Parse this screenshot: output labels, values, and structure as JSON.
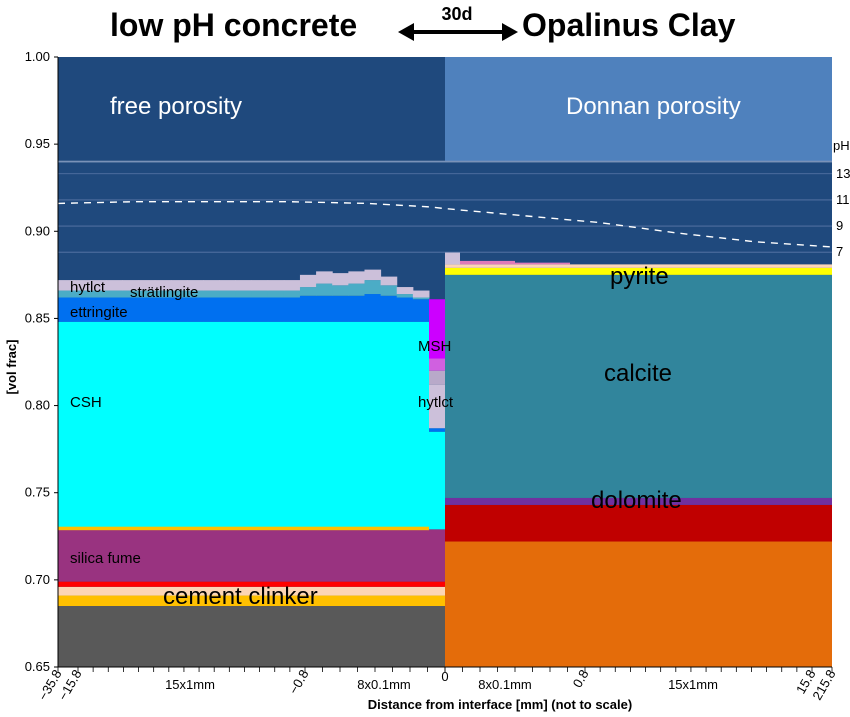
{
  "header": {
    "left_title": "low pH concrete",
    "arrow_label": "30d",
    "right_title": "Opalinus Clay"
  },
  "chart_data": {
    "type": "area",
    "ylabel": "[vol frac]",
    "xlabel": "Distance from interface [mm] (not to scale)",
    "ylim": [
      0.65,
      1.0
    ],
    "yticks": [
      "0.65",
      "0.70",
      "0.75",
      "0.80",
      "0.85",
      "0.90",
      "0.95",
      "1.00"
    ],
    "xticks": [
      "−35.8",
      "−15.8",
      "−0.8",
      "0",
      "0.8",
      "15.8",
      "215.8"
    ],
    "x_segment_labels": [
      "15x1mm",
      "8x0.1mm",
      "8x0.1mm",
      "15x1mm"
    ],
    "colors": {
      "free_porosity": "#1f497d",
      "donnan_porosity": "#4f81bd",
      "hytlct": "#ccc0da",
      "stratlingite": "#4bacc6",
      "ettringite": "#0070f0",
      "csh": "#00ffff",
      "msh": "#cc00ff",
      "silica_fume": "#993380",
      "cement_clinker": "#ffc000",
      "cement_band": "#fcd5b5",
      "cement_red": "#ff0000",
      "cement_base": "#595959",
      "pyrite": "#ffff00",
      "calcite": "#31859c",
      "dolomite": "#c00000",
      "dolomite_edge": "#7030a0",
      "clay_base": "#e46c0a",
      "ph_line": "#ffffff"
    },
    "regions": {
      "left": "free porosity",
      "right": "Donnan porosity",
      "donnan_lower_bound": 0.94
    },
    "concrete_layers": [
      {
        "name": "cement clinker",
        "bottom": 0.65,
        "top": 0.685,
        "color_key": "cement_base"
      },
      {
        "name": "",
        "bottom": 0.685,
        "top": 0.691,
        "color_key": "cement_clinker"
      },
      {
        "name": "",
        "bottom": 0.691,
        "top": 0.696,
        "color_key": "cement_band"
      },
      {
        "name": "",
        "bottom": 0.696,
        "top": 0.699,
        "color_key": "cement_red"
      },
      {
        "name": "silica fume",
        "bottom": 0.699,
        "top": 0.729,
        "color_key": "silica_fume"
      },
      {
        "name": "CSH",
        "bottom": 0.729,
        "top": 0.848,
        "color_key": "csh"
      }
    ],
    "concrete_profile": {
      "columns": [
        {
          "csh": 0.848,
          "ettringite": 0.862,
          "stratlingite": 0.866,
          "hytlct": 0.872
        },
        {
          "csh": 0.848,
          "ettringite": 0.862,
          "stratlingite": 0.866,
          "hytlct": 0.872
        },
        {
          "csh": 0.848,
          "ettringite": 0.862,
          "stratlingite": 0.866,
          "hytlct": 0.872
        },
        {
          "csh": 0.848,
          "ettringite": 0.862,
          "stratlingite": 0.866,
          "hytlct": 0.872
        },
        {
          "csh": 0.848,
          "ettringite": 0.862,
          "stratlingite": 0.866,
          "hytlct": 0.872
        },
        {
          "csh": 0.848,
          "ettringite": 0.862,
          "stratlingite": 0.866,
          "hytlct": 0.872
        },
        {
          "csh": 0.848,
          "ettringite": 0.862,
          "stratlingite": 0.866,
          "hytlct": 0.872
        },
        {
          "csh": 0.848,
          "ettringite": 0.862,
          "stratlingite": 0.866,
          "hytlct": 0.872
        },
        {
          "csh": 0.848,
          "ettringite": 0.862,
          "stratlingite": 0.866,
          "hytlct": 0.872
        },
        {
          "csh": 0.848,
          "ettringite": 0.862,
          "stratlingite": 0.866,
          "hytlct": 0.872
        },
        {
          "csh": 0.848,
          "ettringite": 0.862,
          "stratlingite": 0.866,
          "hytlct": 0.872
        },
        {
          "csh": 0.848,
          "ettringite": 0.862,
          "stratlingite": 0.866,
          "hytlct": 0.872
        },
        {
          "csh": 0.848,
          "ettringite": 0.862,
          "stratlingite": 0.866,
          "hytlct": 0.872
        },
        {
          "csh": 0.848,
          "ettringite": 0.862,
          "stratlingite": 0.866,
          "hytlct": 0.872
        },
        {
          "csh": 0.848,
          "ettringite": 0.862,
          "stratlingite": 0.866,
          "hytlct": 0.872
        },
        {
          "csh": 0.848,
          "ettringite": 0.863,
          "stratlingite": 0.868,
          "hytlct": 0.875
        },
        {
          "csh": 0.848,
          "ettringite": 0.863,
          "stratlingite": 0.87,
          "hytlct": 0.877
        },
        {
          "csh": 0.848,
          "ettringite": 0.863,
          "stratlingite": 0.869,
          "hytlct": 0.876
        },
        {
          "csh": 0.848,
          "ettringite": 0.863,
          "stratlingite": 0.87,
          "hytlct": 0.877
        },
        {
          "csh": 0.848,
          "ettringite": 0.864,
          "stratlingite": 0.872,
          "hytlct": 0.878
        },
        {
          "csh": 0.848,
          "ettringite": 0.863,
          "stratlingite": 0.869,
          "hytlct": 0.874
        },
        {
          "csh": 0.848,
          "ettringite": 0.862,
          "stratlingite": 0.864,
          "hytlct": 0.868
        },
        {
          "csh": 0.848,
          "ettringite": 0.861,
          "stratlingite": 0.862,
          "hytlct": 0.866
        }
      ],
      "interface_column": {
        "csh": 0.785,
        "ettringite": 0.787,
        "hytlct": 0.812,
        "grey": 0.82,
        "msh_light": 0.827,
        "msh": 0.861
      }
    },
    "concrete_labels": [
      "hytlct",
      "strätlingite",
      "ettringite",
      "CSH",
      "MSH",
      "hytlct",
      "silica fume",
      "cement clinker"
    ],
    "clay_layers": [
      {
        "name": "",
        "bottom": 0.65,
        "top": 0.722,
        "color_key": "clay_base"
      },
      {
        "name": "dolomite",
        "bottom": 0.722,
        "top": 0.743,
        "color_key": "dolomite"
      },
      {
        "name": "",
        "bottom": 0.743,
        "top": 0.747,
        "color_key": "dolomite_edge"
      },
      {
        "name": "calcite",
        "bottom": 0.747,
        "top": 0.875,
        "color_key": "calcite"
      },
      {
        "name": "pyrite",
        "bottom": 0.875,
        "top": 0.879,
        "color_key": "pyrite"
      },
      {
        "name": "",
        "bottom": 0.879,
        "top": 0.881,
        "color_key": "cement_band"
      }
    ],
    "ph_axis": {
      "label": "pH",
      "ticks": [
        {
          "label": "13",
          "y": 0.933
        },
        {
          "label": "11",
          "y": 0.918
        },
        {
          "label": "9",
          "y": 0.903
        },
        {
          "label": "7",
          "y": 0.888
        }
      ]
    },
    "ph_profile": {
      "x_frac": [
        0.0,
        0.1,
        0.2,
        0.3,
        0.4,
        0.48,
        0.5,
        0.55,
        0.6,
        0.7,
        0.8,
        0.9,
        1.0
      ],
      "y": [
        0.916,
        0.917,
        0.917,
        0.917,
        0.916,
        0.914,
        0.913,
        0.911,
        0.909,
        0.905,
        0.899,
        0.894,
        0.891
      ]
    }
  }
}
